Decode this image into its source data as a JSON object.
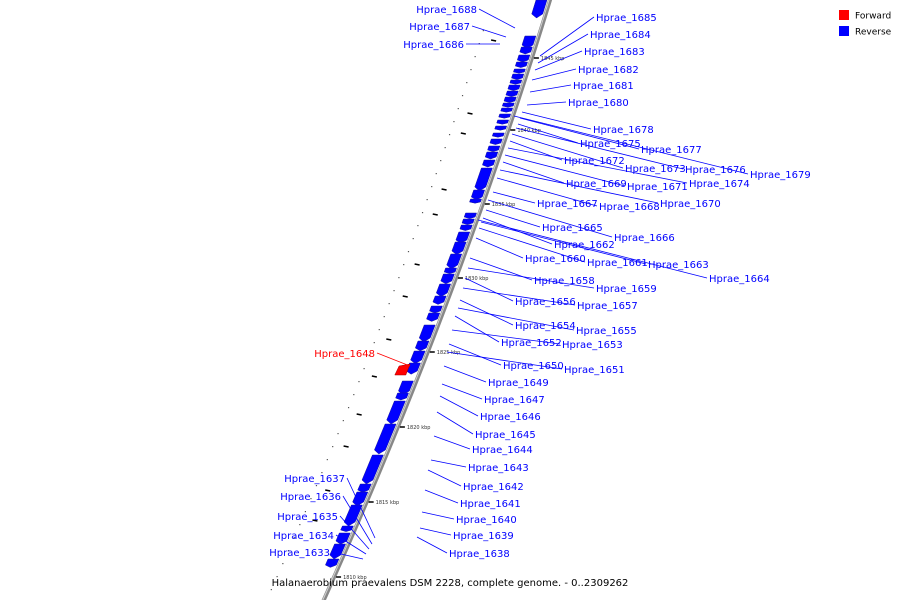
{
  "caption": "Halanaerobium praevalens DSM 2228, complete genome. - 0..2309262",
  "legend": [
    {
      "label": "Forward",
      "color": "#ff0000"
    },
    {
      "label": "Reverse",
      "color": "#0000ff"
    }
  ],
  "ticks": [
    "1845 kbp",
    "1840 kbp",
    "1835 kbp",
    "1830 kbp",
    "1825 kbp",
    "1820 kbp",
    "1815 kbp",
    "1810 kbp"
  ],
  "genes": [
    {
      "name": "Hprae_1688",
      "strand": "reverse"
    },
    {
      "name": "Hprae_1687",
      "strand": "reverse"
    },
    {
      "name": "Hprae_1686",
      "strand": "reverse"
    },
    {
      "name": "Hprae_1685",
      "strand": "reverse"
    },
    {
      "name": "Hprae_1684",
      "strand": "reverse"
    },
    {
      "name": "Hprae_1683",
      "strand": "reverse"
    },
    {
      "name": "Hprae_1682",
      "strand": "reverse"
    },
    {
      "name": "Hprae_1681",
      "strand": "reverse"
    },
    {
      "name": "Hprae_1680",
      "strand": "reverse"
    },
    {
      "name": "Hprae_1678",
      "strand": "reverse"
    },
    {
      "name": "Hprae_1677",
      "strand": "reverse"
    },
    {
      "name": "Hprae_1675",
      "strand": "reverse"
    },
    {
      "name": "Hprae_1676",
      "strand": "reverse"
    },
    {
      "name": "Hprae_1679",
      "strand": "reverse"
    },
    {
      "name": "Hprae_1673",
      "strand": "reverse"
    },
    {
      "name": "Hprae_1672",
      "strand": "reverse"
    },
    {
      "name": "Hprae_1674",
      "strand": "reverse"
    },
    {
      "name": "Hprae_1671",
      "strand": "reverse"
    },
    {
      "name": "Hprae_1669",
      "strand": "reverse"
    },
    {
      "name": "Hprae_1670",
      "strand": "reverse"
    },
    {
      "name": "Hprae_1668",
      "strand": "reverse"
    },
    {
      "name": "Hprae_1667",
      "strand": "reverse"
    },
    {
      "name": "Hprae_1666",
      "strand": "reverse"
    },
    {
      "name": "Hprae_1665",
      "strand": "reverse"
    },
    {
      "name": "Hprae_1662",
      "strand": "reverse"
    },
    {
      "name": "Hprae_1663",
      "strand": "reverse"
    },
    {
      "name": "Hprae_1661",
      "strand": "reverse"
    },
    {
      "name": "Hprae_1660",
      "strand": "reverse"
    },
    {
      "name": "Hprae_1664",
      "strand": "reverse"
    },
    {
      "name": "Hprae_1658",
      "strand": "reverse"
    },
    {
      "name": "Hprae_1659",
      "strand": "reverse"
    },
    {
      "name": "Hprae_1656",
      "strand": "reverse"
    },
    {
      "name": "Hprae_1657",
      "strand": "reverse"
    },
    {
      "name": "Hprae_1654",
      "strand": "reverse"
    },
    {
      "name": "Hprae_1655",
      "strand": "reverse"
    },
    {
      "name": "Hprae_1652",
      "strand": "reverse"
    },
    {
      "name": "Hprae_1653",
      "strand": "reverse"
    },
    {
      "name": "Hprae_1648",
      "strand": "forward"
    },
    {
      "name": "Hprae_1650",
      "strand": "reverse"
    },
    {
      "name": "Hprae_1651",
      "strand": "reverse"
    },
    {
      "name": "Hprae_1649",
      "strand": "reverse"
    },
    {
      "name": "Hprae_1647",
      "strand": "reverse"
    },
    {
      "name": "Hprae_1646",
      "strand": "reverse"
    },
    {
      "name": "Hprae_1645",
      "strand": "reverse"
    },
    {
      "name": "Hprae_1644",
      "strand": "reverse"
    },
    {
      "name": "Hprae_1643",
      "strand": "reverse"
    },
    {
      "name": "Hprae_1642",
      "strand": "reverse"
    },
    {
      "name": "Hprae_1641",
      "strand": "reverse"
    },
    {
      "name": "Hprae_1640",
      "strand": "reverse"
    },
    {
      "name": "Hprae_1639",
      "strand": "reverse"
    },
    {
      "name": "Hprae_1638",
      "strand": "reverse"
    },
    {
      "name": "Hprae_1637",
      "strand": "reverse"
    },
    {
      "name": "Hprae_1636",
      "strand": "reverse"
    },
    {
      "name": "Hprae_1635",
      "strand": "reverse"
    },
    {
      "name": "Hprae_1634",
      "strand": "reverse"
    },
    {
      "name": "Hprae_1633",
      "strand": "reverse"
    }
  ]
}
